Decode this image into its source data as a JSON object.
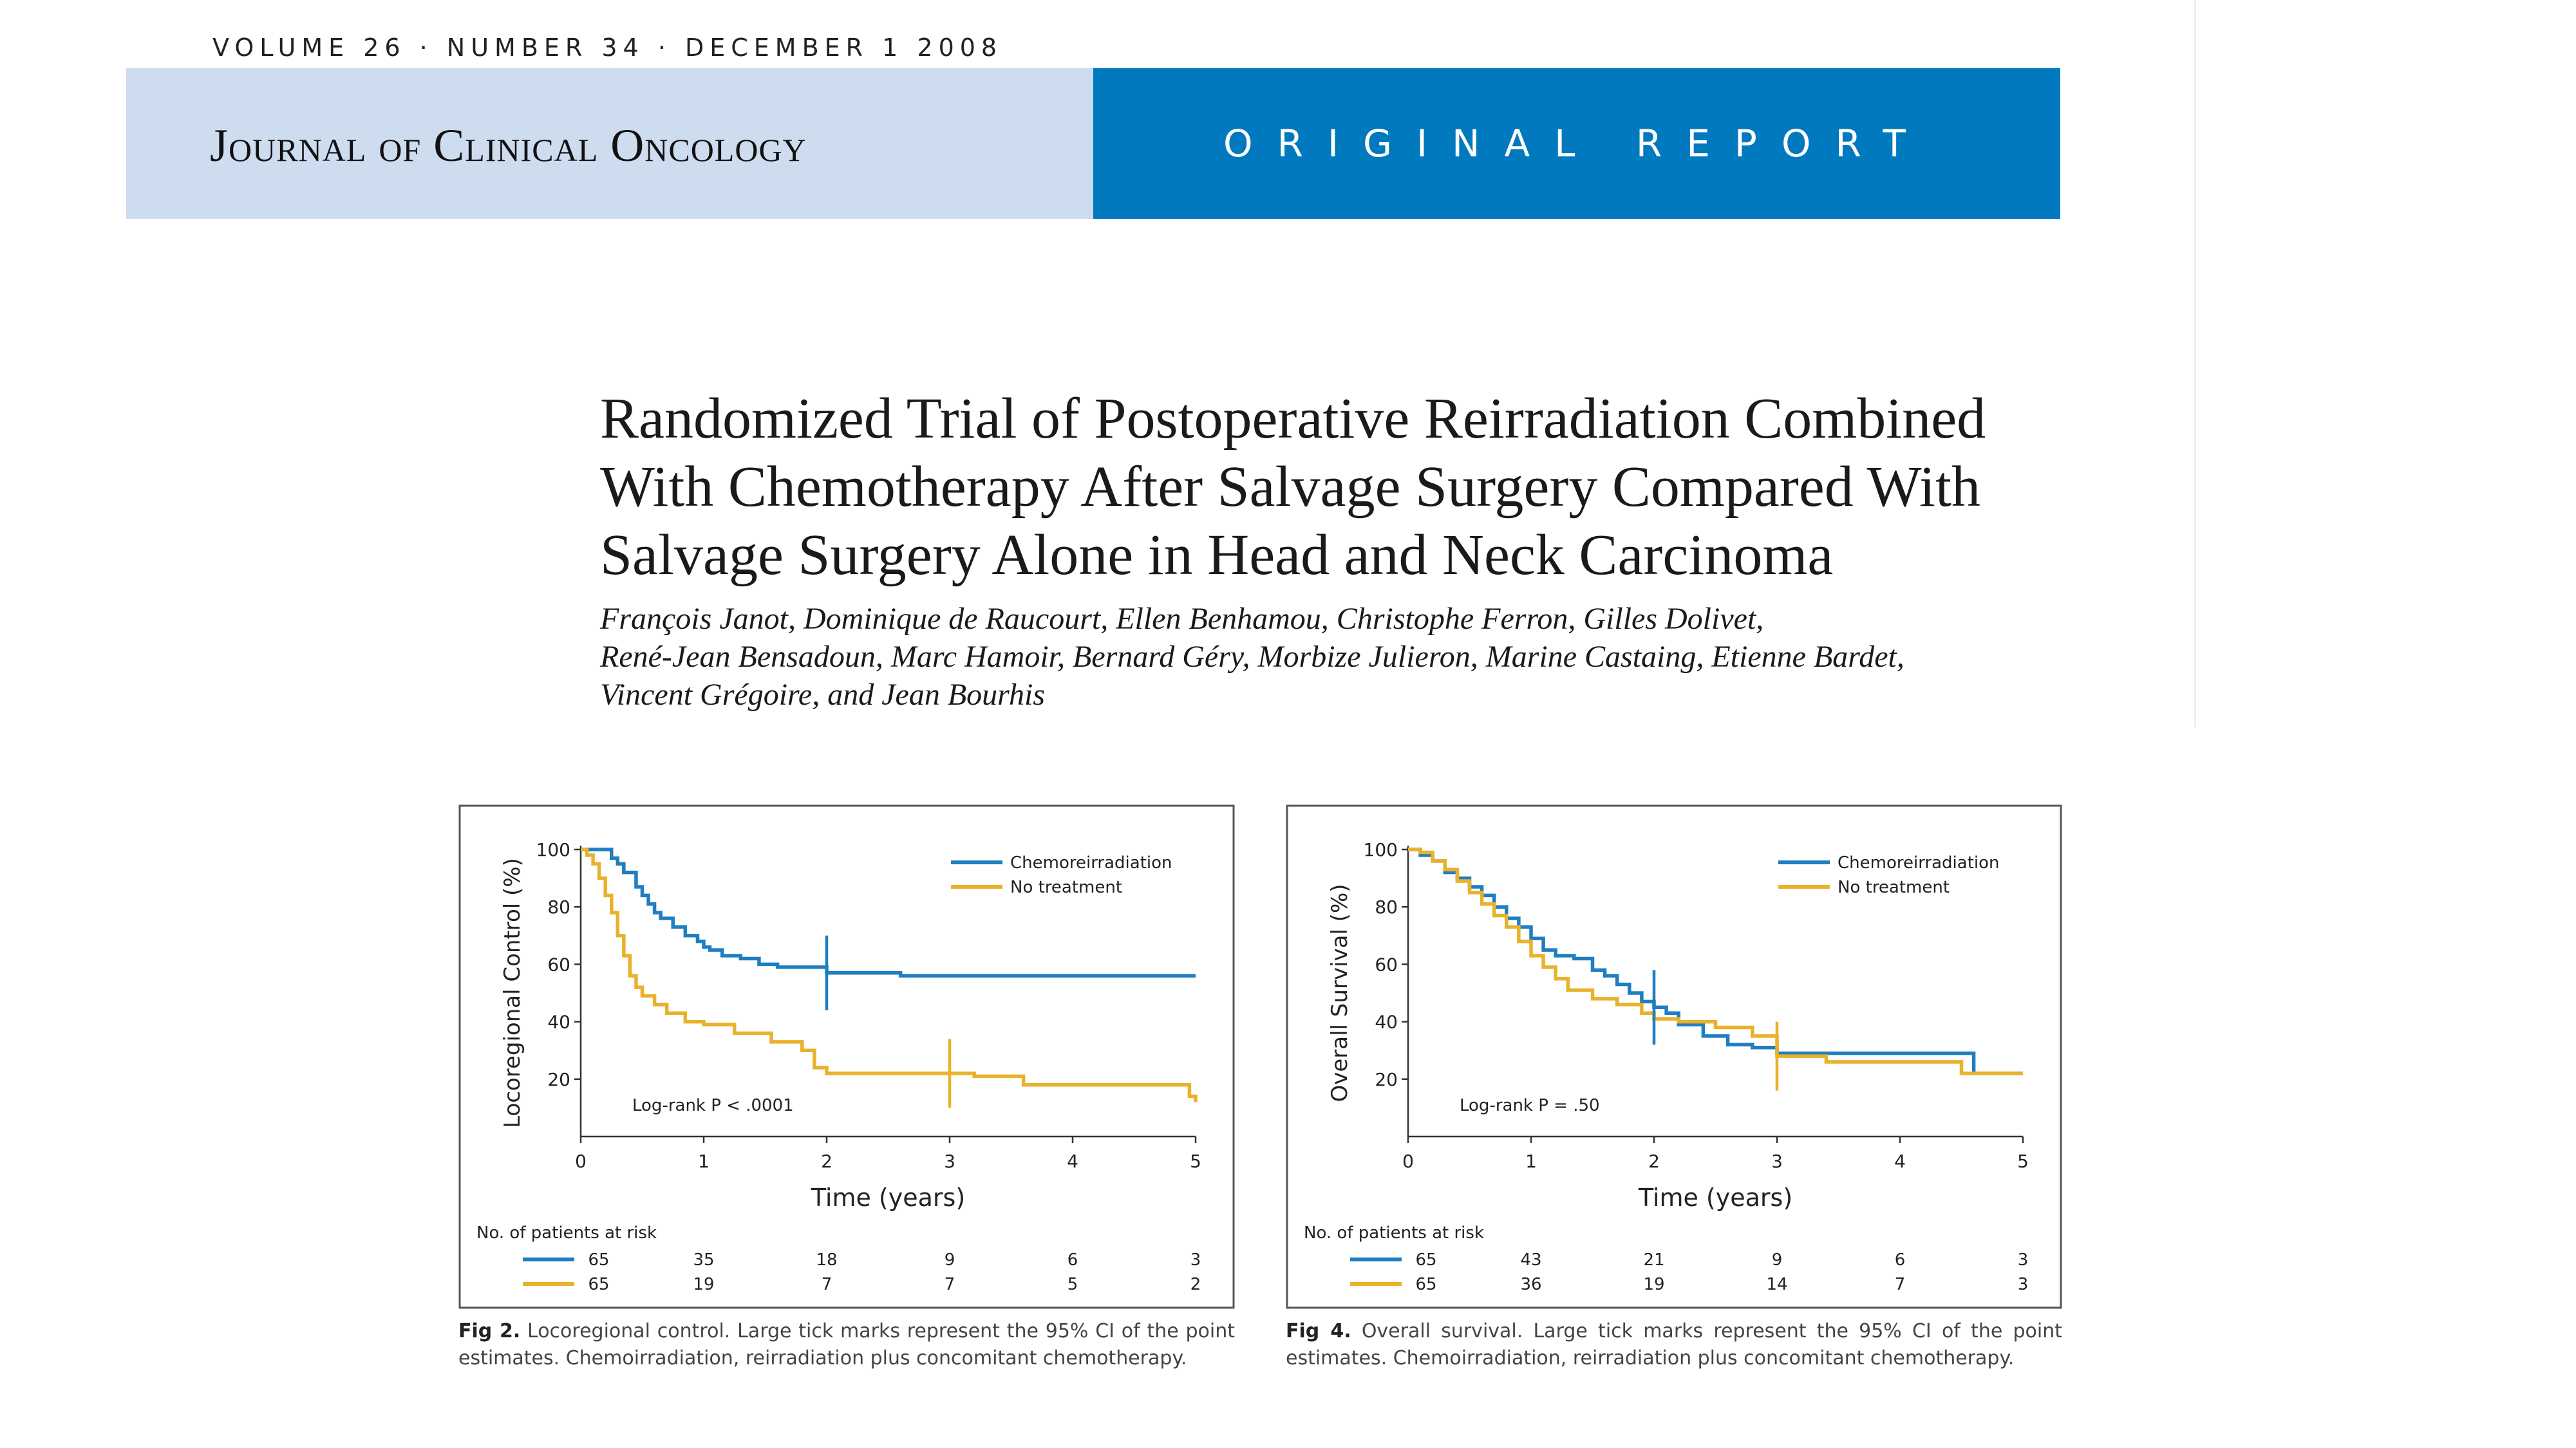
{
  "header": {
    "issue_line": "VOLUME 26 · NUMBER 34 · DECEMBER 1 2008",
    "journal_name": "Journal of Clinical Oncology",
    "report_type": "ORIGINAL REPORT",
    "colors": {
      "left_band": "#cddcee",
      "right_band": "#0079bf"
    }
  },
  "article": {
    "title": "Randomized Trial of Postoperative Reirradiation Combined With Chemotherapy After Salvage Surgery Compared With Salvage Surgery Alone in Head and Neck Carcinoma",
    "title_lines": [
      "Randomized Trial of Postoperative Reirradiation Combined",
      "With Chemotherapy After Salvage Surgery Compared With",
      "Salvage Surgery Alone in Head and Neck Carcinoma"
    ],
    "author_lines": [
      "François Janot, Dominique de Raucourt, Ellen Benhamou, Christophe Ferron, Gilles Dolivet,",
      "René-Jean Bensadoun, Marc Hamoir, Bernard Géry, Morbize Julieron, Marine Castaing, Etienne Bardet,",
      "Vincent Grégoire, and Jean Bourhis"
    ]
  },
  "figures": [
    {
      "caption_label": "Fig 2.",
      "caption_text": "Locoregional control. Large tick marks represent the 95% CI of the point estimates. Chemoirradiation, reirradiation plus concomitant chemotherapy.",
      "at_risk_label": "No. of patients at risk",
      "at_risk": [
        {
          "series": "Chemoreirradiation",
          "values": [
            "65",
            "35",
            "18",
            "9",
            "6",
            "3"
          ]
        },
        {
          "series": "No treatment",
          "values": [
            "65",
            "19",
            "7",
            "7",
            "5",
            "2"
          ]
        }
      ]
    },
    {
      "caption_label": "Fig 4.",
      "caption_text": "Overall survival. Large tick marks represent the 95% CI of the point estimates. Chemoirradiation, reirradiation plus concomitant chemotherapy.",
      "at_risk_label": "No. of patients at risk",
      "at_risk": [
        {
          "series": "Chemoreirradiation",
          "values": [
            "65",
            "43",
            "21",
            "9",
            "6",
            "3"
          ]
        },
        {
          "series": "No treatment",
          "values": [
            "65",
            "36",
            "19",
            "14",
            "7",
            "3"
          ]
        }
      ]
    }
  ],
  "chart_data": [
    {
      "type": "line",
      "title": "",
      "xlabel": "Time (years)",
      "ylabel": "Locoregional Control (%)",
      "xlim": [
        0,
        5
      ],
      "ylim": [
        0,
        100
      ],
      "x_ticks": [
        0,
        1,
        2,
        3,
        4,
        5
      ],
      "y_ticks": [
        20,
        40,
        60,
        80,
        100
      ],
      "grid": false,
      "legend_position": "top-right",
      "annotation": "Log-rank P < .0001",
      "series": [
        {
          "name": "Chemoreirradiation",
          "color": "#1f7ec1",
          "x": [
            0,
            0.15,
            0.25,
            0.3,
            0.35,
            0.45,
            0.5,
            0.55,
            0.6,
            0.65,
            0.75,
            0.85,
            0.95,
            1.0,
            1.05,
            1.15,
            1.3,
            1.45,
            1.6,
            1.8,
            2.0,
            2.3,
            2.6,
            3.0,
            3.5,
            4.0,
            4.5,
            5.0
          ],
          "y": [
            100,
            100,
            97,
            95,
            92,
            87,
            84,
            81,
            78,
            76,
            73,
            70,
            68,
            66,
            65,
            63,
            62,
            60,
            59,
            59,
            57,
            57,
            56,
            56,
            56,
            56,
            56,
            56
          ]
        },
        {
          "name": "No treatment",
          "color": "#e9b22b",
          "x": [
            0,
            0.05,
            0.1,
            0.15,
            0.2,
            0.25,
            0.3,
            0.35,
            0.4,
            0.45,
            0.5,
            0.6,
            0.7,
            0.85,
            1.0,
            1.25,
            1.55,
            1.8,
            1.9,
            2.0,
            2.5,
            3.0,
            3.2,
            3.6,
            4.0,
            4.5,
            4.9,
            4.95,
            5.0
          ],
          "y": [
            100,
            98,
            95,
            90,
            84,
            78,
            70,
            63,
            56,
            52,
            49,
            46,
            43,
            40,
            39,
            36,
            33,
            30,
            24,
            22,
            22,
            22,
            21,
            18,
            18,
            18,
            18,
            14,
            12
          ]
        }
      ]
    },
    {
      "type": "line",
      "title": "",
      "xlabel": "Time (years)",
      "ylabel": "Overall Survival (%)",
      "xlim": [
        0,
        5
      ],
      "ylim": [
        0,
        100
      ],
      "x_ticks": [
        0,
        1,
        2,
        3,
        4,
        5
      ],
      "y_ticks": [
        20,
        40,
        60,
        80,
        100
      ],
      "grid": false,
      "legend_position": "top-right",
      "annotation": "Log-rank P = .50",
      "series": [
        {
          "name": "Chemoreirradiation",
          "color": "#1f7ec1",
          "x": [
            0,
            0.1,
            0.2,
            0.3,
            0.4,
            0.5,
            0.6,
            0.7,
            0.8,
            0.9,
            1.0,
            1.1,
            1.2,
            1.35,
            1.5,
            1.6,
            1.7,
            1.8,
            1.9,
            2.0,
            2.1,
            2.2,
            2.4,
            2.6,
            2.8,
            3.0,
            3.5,
            4.0,
            4.5,
            4.6,
            5.0
          ],
          "y": [
            100,
            98,
            96,
            92,
            90,
            87,
            84,
            80,
            76,
            73,
            69,
            65,
            63,
            62,
            58,
            56,
            53,
            50,
            47,
            45,
            43,
            39,
            35,
            32,
            31,
            29,
            29,
            29,
            29,
            22,
            22
          ]
        },
        {
          "name": "No treatment",
          "color": "#e9b22b",
          "x": [
            0,
            0.1,
            0.2,
            0.3,
            0.4,
            0.5,
            0.6,
            0.7,
            0.8,
            0.9,
            1.0,
            1.1,
            1.2,
            1.3,
            1.5,
            1.7,
            1.9,
            2.0,
            2.2,
            2.5,
            2.8,
            3.0,
            3.4,
            4.0,
            4.4,
            4.5,
            5.0
          ],
          "y": [
            100,
            99,
            96,
            93,
            89,
            85,
            81,
            77,
            73,
            68,
            63,
            59,
            55,
            51,
            48,
            46,
            43,
            41,
            40,
            38,
            35,
            28,
            26,
            26,
            26,
            22,
            22
          ]
        }
      ]
    }
  ]
}
